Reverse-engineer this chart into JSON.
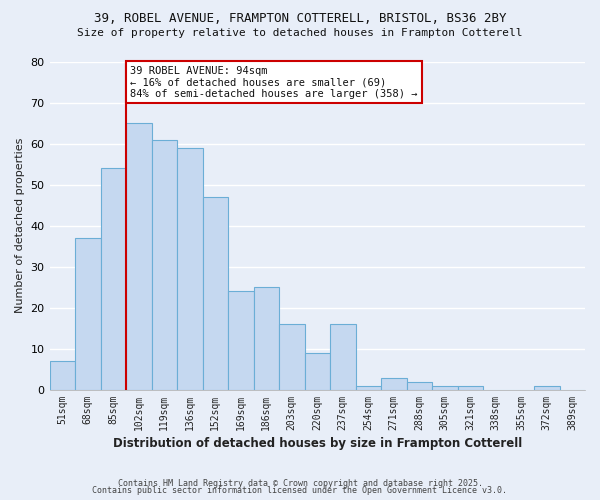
{
  "title1": "39, ROBEL AVENUE, FRAMPTON COTTERELL, BRISTOL, BS36 2BY",
  "title2": "Size of property relative to detached houses in Frampton Cotterell",
  "xlabel": "Distribution of detached houses by size in Frampton Cotterell",
  "ylabel": "Number of detached properties",
  "categories": [
    "51sqm",
    "68sqm",
    "85sqm",
    "102sqm",
    "119sqm",
    "136sqm",
    "152sqm",
    "169sqm",
    "186sqm",
    "203sqm",
    "220sqm",
    "237sqm",
    "254sqm",
    "271sqm",
    "288sqm",
    "305sqm",
    "321sqm",
    "338sqm",
    "355sqm",
    "372sqm",
    "389sqm"
  ],
  "values": [
    7,
    37,
    54,
    65,
    61,
    59,
    47,
    24,
    25,
    16,
    9,
    16,
    1,
    3,
    2,
    1,
    1,
    0,
    0,
    1,
    0
  ],
  "bar_color": "#c5d8f0",
  "bar_edge_color": "#6baed6",
  "background_color": "#e8eef8",
  "grid_color": "#ffffff",
  "vline_x_index": 2,
  "vline_color": "#cc0000",
  "annotation_title": "39 ROBEL AVENUE: 94sqm",
  "annotation_line1": "← 16% of detached houses are smaller (69)",
  "annotation_line2": "84% of semi-detached houses are larger (358) →",
  "annotation_box_color": "#ffffff",
  "annotation_box_edge": "#cc0000",
  "ylim": [
    0,
    80
  ],
  "yticks": [
    0,
    10,
    20,
    30,
    40,
    50,
    60,
    70,
    80
  ],
  "footer1": "Contains HM Land Registry data © Crown copyright and database right 2025.",
  "footer2": "Contains public sector information licensed under the Open Government Licence v3.0."
}
